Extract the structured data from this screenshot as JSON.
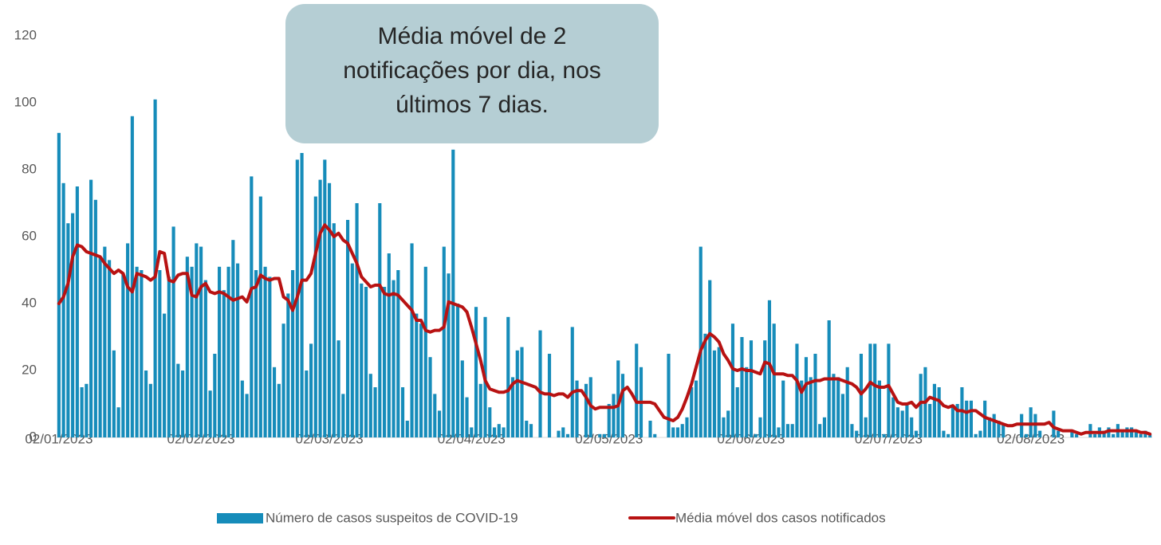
{
  "chart_data": {
    "type": "bar_line",
    "annotation": [
      "Média móvel de 2",
      "notificações por dia, nos",
      "últimos 7 dias."
    ],
    "categories": [
      "02/01/2023",
      null,
      null,
      null,
      null,
      null,
      null,
      null,
      null,
      null,
      null,
      null,
      null,
      null,
      null,
      null,
      null,
      null,
      null,
      null,
      null,
      null,
      null,
      null,
      null,
      null,
      null,
      null,
      null,
      null,
      null,
      "02/02/2023",
      null,
      null,
      null,
      null,
      null,
      null,
      null,
      null,
      null,
      null,
      null,
      null,
      null,
      null,
      null,
      null,
      null,
      null,
      null,
      null,
      null,
      null,
      null,
      null,
      null,
      null,
      null,
      "02/03/2023",
      null,
      null,
      null,
      null,
      null,
      null,
      null,
      null,
      null,
      null,
      null,
      null,
      null,
      null,
      null,
      null,
      null,
      null,
      null,
      null,
      null,
      null,
      null,
      null,
      null,
      null,
      null,
      null,
      null,
      null,
      "02/04/2023",
      null,
      null,
      null,
      null,
      null,
      null,
      null,
      null,
      null,
      null,
      null,
      null,
      null,
      null,
      null,
      null,
      null,
      null,
      null,
      null,
      null,
      null,
      null,
      null,
      null,
      null,
      null,
      null,
      null,
      "02/05/2023",
      null,
      null,
      null,
      null,
      null,
      null,
      null,
      null,
      null,
      null,
      null,
      null,
      null,
      null,
      null,
      null,
      null,
      null,
      null,
      null,
      null,
      null,
      null,
      null,
      null,
      null,
      null,
      null,
      null,
      null,
      "02/06/2023",
      null,
      null,
      null,
      null,
      null,
      null,
      null,
      null,
      null,
      null,
      null,
      null,
      null,
      null,
      null,
      null,
      null,
      null,
      null,
      null,
      null,
      null,
      null,
      null,
      null,
      null,
      null,
      null,
      null,
      "02/07/2023",
      null,
      null,
      null,
      null,
      null,
      null,
      null,
      null,
      null,
      null,
      null,
      null,
      null,
      null,
      null,
      null,
      null,
      null,
      null,
      null,
      null,
      null,
      null,
      null,
      null,
      null,
      null,
      null,
      null,
      null,
      "02/08/2023",
      null,
      null,
      null,
      null,
      null,
      null,
      null,
      null,
      null,
      null,
      null,
      null,
      null,
      null,
      null,
      null,
      null,
      null,
      null,
      null,
      null,
      null,
      null,
      null,
      null,
      null
    ],
    "series": [
      {
        "name": "Número de casos suspeitos de COVID-19",
        "color": "#168cba",
        "kind": "bar",
        "values": [
          91,
          76,
          64,
          67,
          75,
          15,
          16,
          77,
          71,
          54,
          57,
          53,
          26,
          9,
          49,
          58,
          96,
          51,
          50,
          20,
          16,
          101,
          50,
          37,
          48,
          63,
          22,
          20,
          54,
          51,
          58,
          57,
          47,
          14,
          25,
          51,
          44,
          51,
          59,
          52,
          17,
          13,
          78,
          50,
          72,
          51,
          48,
          21,
          16,
          34,
          43,
          50,
          83,
          85,
          20,
          28,
          72,
          77,
          83,
          76,
          64,
          29,
          13,
          65,
          52,
          70,
          46,
          45,
          19,
          15,
          70,
          45,
          55,
          47,
          50,
          15,
          5,
          58,
          37,
          34,
          51,
          24,
          13,
          8,
          57,
          49,
          86,
          40,
          23,
          12,
          3,
          39,
          16,
          36,
          9,
          3,
          4,
          3,
          36,
          18,
          26,
          27,
          5,
          4,
          0,
          32,
          0,
          25,
          0,
          2,
          3,
          1,
          33,
          17,
          0,
          16,
          18,
          0,
          1,
          1,
          10,
          13,
          23,
          19,
          0,
          0,
          28,
          21,
          0,
          5,
          1,
          0,
          0,
          25,
          3,
          3,
          4,
          6,
          15,
          17,
          57,
          31,
          47,
          26,
          27,
          6,
          8,
          34,
          15,
          30,
          21,
          29,
          1,
          6,
          29,
          41,
          34,
          3,
          17,
          4,
          4,
          28,
          17,
          24,
          18,
          25,
          4,
          6,
          35,
          19,
          18,
          13,
          21,
          4,
          2,
          25,
          6,
          28,
          28,
          17,
          1,
          28,
          12,
          9,
          8,
          10,
          6,
          2,
          19,
          21,
          10,
          16,
          15,
          2,
          1,
          9,
          10,
          15,
          11,
          11,
          1,
          2,
          11,
          6,
          7,
          5,
          4,
          0,
          0,
          0,
          7,
          1,
          9,
          7,
          2,
          0,
          0,
          8,
          2,
          0,
          0,
          2,
          1,
          0,
          0,
          4,
          1,
          3,
          2,
          3,
          1,
          4,
          2,
          3,
          3,
          2,
          1,
          2,
          1
        ]
      },
      {
        "name": "Média móvel dos casos notificados",
        "color": "#b81212",
        "kind": "line",
        "values": [
          40,
          42,
          46,
          54,
          57.5,
          57,
          55.5,
          55,
          54.5,
          54,
          52,
          50.5,
          49,
          50,
          49,
          45,
          43.5,
          49,
          48.5,
          48,
          47,
          48,
          55.5,
          55,
          47,
          46.5,
          48.5,
          49,
          49,
          42.5,
          42,
          45,
          46,
          43.5,
          43,
          43.5,
          43,
          42,
          41,
          41.5,
          42,
          40.5,
          44.5,
          45,
          48.5,
          47.5,
          47,
          47.5,
          47.5,
          42,
          41,
          38,
          42,
          47,
          47,
          49,
          55,
          61,
          63.5,
          62,
          60,
          61,
          59,
          58,
          55,
          52,
          48,
          46.5,
          45,
          45.5,
          45.5,
          43,
          42.5,
          43,
          42.5,
          41,
          39.5,
          38,
          35,
          35,
          32,
          31.5,
          32,
          32,
          33,
          40.5,
          40,
          39.5,
          39,
          37.5,
          33,
          28,
          23,
          17,
          14.5,
          14,
          13.5,
          13.5,
          14,
          16,
          17,
          16.5,
          16,
          15.5,
          15,
          13.5,
          13,
          13,
          12.5,
          13,
          13,
          12,
          13.5,
          14,
          14,
          12,
          9.5,
          8.5,
          9,
          9,
          9,
          9,
          9.5,
          14,
          15,
          13,
          10.5,
          10.5,
          10.5,
          10.5,
          10,
          8,
          6,
          5.5,
          5,
          6,
          8.5,
          12,
          16,
          21,
          26,
          29,
          31,
          30,
          28.5,
          25,
          23,
          20.5,
          20,
          20.5,
          20,
          20,
          19.5,
          19,
          22.5,
          22,
          19,
          19,
          19,
          18.5,
          18.5,
          17,
          13.5,
          16,
          16.5,
          17,
          17,
          17.5,
          17.5,
          17.5,
          17.5,
          17,
          16.5,
          16,
          15,
          13,
          14.5,
          16.5,
          15.5,
          15,
          15,
          15.5,
          13,
          10.5,
          10,
          10,
          10.5,
          9,
          10.5,
          10.5,
          12,
          11.5,
          11,
          9.5,
          9,
          9.5,
          8,
          8,
          7.5,
          8,
          8,
          7,
          6,
          5.5,
          5,
          4.5,
          4,
          3.5,
          3.5,
          4,
          4,
          4,
          4,
          4,
          4,
          4,
          4.5,
          3,
          2.5,
          2,
          2,
          2,
          1.5,
          1,
          1.5,
          1.5,
          1.5,
          1.5,
          1.5,
          2,
          2,
          2,
          2,
          2,
          2,
          2,
          1.5,
          1.5,
          1
        ]
      }
    ],
    "ylim": [
      0,
      120
    ],
    "yticks": [
      0,
      20,
      40,
      60,
      80,
      100,
      120
    ],
    "grid": false,
    "legend": "bottom"
  }
}
